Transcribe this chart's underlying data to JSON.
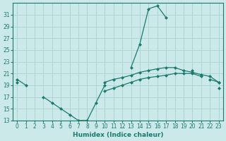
{
  "xlabel": "Humidex (Indice chaleur)",
  "bg_color": "#cce9e9",
  "grid_color": "#aed4d4",
  "line_color": "#1a7a6e",
  "x_values": [
    0,
    1,
    2,
    3,
    4,
    5,
    6,
    7,
    8,
    9,
    10,
    11,
    12,
    13,
    14,
    15,
    16,
    17,
    18,
    19,
    20,
    21,
    22,
    23
  ],
  "curve_peak": [
    null,
    null,
    null,
    null,
    null,
    null,
    null,
    null,
    null,
    null,
    null,
    null,
    null,
    22,
    26,
    32,
    32.5,
    30.5,
    null,
    null,
    21.5,
    null,
    20,
    19.5
  ],
  "curve_dip": [
    20,
    19,
    null,
    17,
    16,
    15,
    14,
    13,
    13,
    16,
    19,
    null,
    null,
    null,
    null,
    null,
    null,
    null,
    null,
    null,
    null,
    null,
    null,
    null
  ],
  "curve_upper": [
    19.5,
    null,
    null,
    null,
    null,
    null,
    null,
    null,
    null,
    null,
    19.5,
    20,
    20.3,
    20.7,
    21.2,
    21.5,
    21.8,
    22,
    22,
    21.5,
    21.2,
    20.8,
    20.5,
    19.5
  ],
  "curve_lower": [
    null,
    null,
    null,
    null,
    null,
    null,
    null,
    null,
    null,
    null,
    18,
    18.5,
    19,
    19.5,
    20,
    20.3,
    20.5,
    20.7,
    21,
    21,
    21,
    20.5,
    null,
    18.5
  ],
  "ylim": [
    13,
    33
  ],
  "xlim": [
    -0.5,
    23.5
  ],
  "yticks": [
    13,
    15,
    17,
    19,
    21,
    23,
    25,
    27,
    29,
    31
  ],
  "xticks": [
    0,
    1,
    2,
    3,
    4,
    5,
    6,
    7,
    8,
    9,
    10,
    11,
    12,
    13,
    14,
    15,
    16,
    17,
    18,
    19,
    20,
    21,
    22,
    23
  ],
  "markersize": 2.5
}
